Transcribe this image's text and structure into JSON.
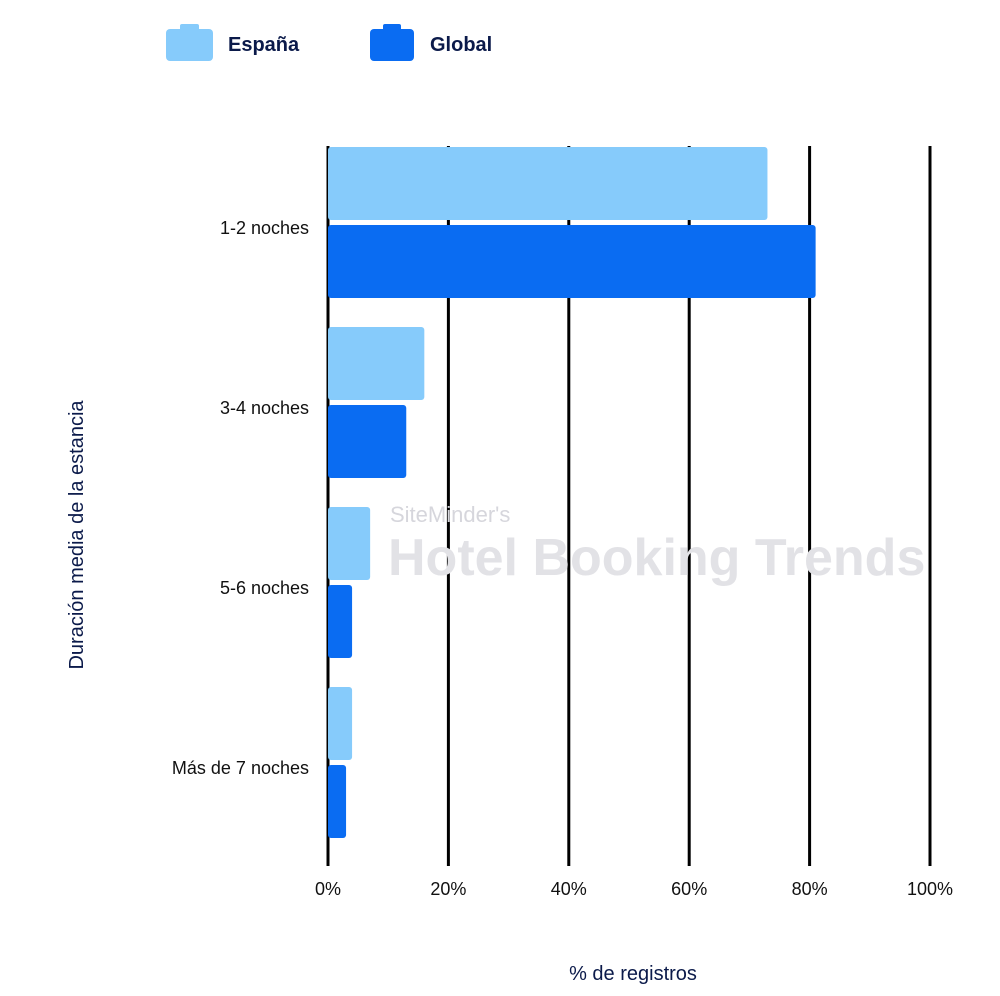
{
  "colors": {
    "espana": "#86cbfb",
    "global": "#0a6cf2",
    "grid": "#000000",
    "text": "#111111",
    "title_text": "#0b1a4a",
    "watermark": "#e2e2e6",
    "watermark_accent": "#b9dcf7"
  },
  "legend": [
    {
      "name": "España",
      "color": "#86cbfb"
    },
    {
      "name": "Global",
      "color": "#0a6cf2"
    }
  ],
  "watermark": {
    "line1": "SiteMinder's",
    "line2": "Hotel Booking Trends"
  },
  "chart_data": {
    "type": "bar",
    "orientation": "horizontal",
    "categories": [
      "1-2 noches",
      "3-4 noches",
      "5-6 noches",
      "Más de 7 noches"
    ],
    "series": [
      {
        "name": "España",
        "values": [
          73,
          16,
          7,
          4
        ]
      },
      {
        "name": "Global",
        "values": [
          81,
          13,
          4,
          3
        ]
      }
    ],
    "xlabel": "% de registros",
    "ylabel": "Duración media de la estancia",
    "xlim": [
      0,
      100
    ],
    "xticks": [
      0,
      20,
      40,
      60,
      80,
      100
    ],
    "xtick_labels": [
      "0%",
      "20%",
      "40%",
      "60%",
      "80%",
      "100%"
    ],
    "grid": true,
    "legend_position": "top-left"
  }
}
